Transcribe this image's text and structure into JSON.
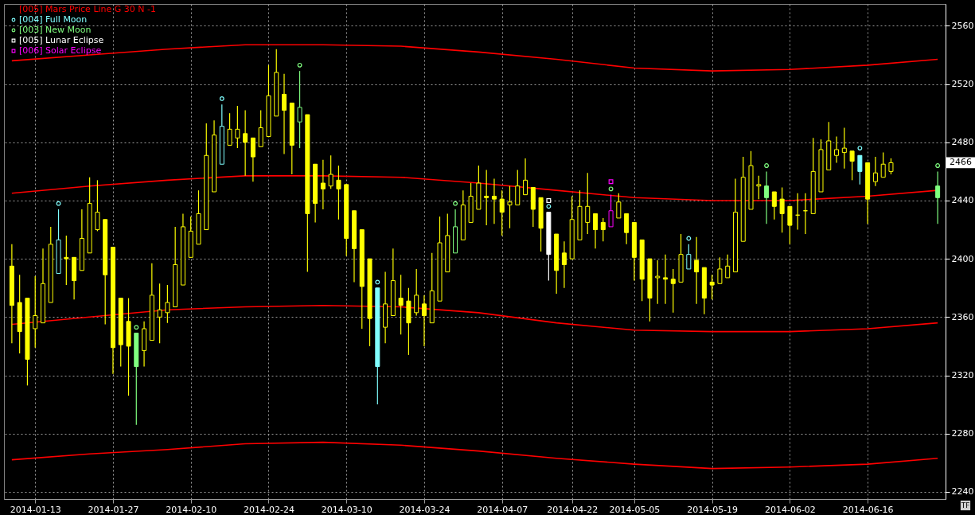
{
  "chart_data": {
    "type": "candlestick",
    "categories": [
      null,
      null,
      null,
      "2014-01-13",
      null,
      null,
      null,
      null,
      null,
      null,
      null,
      null,
      null,
      "2014-01-27",
      null,
      null,
      null,
      null,
      null,
      null,
      null,
      null,
      null,
      "2014-02-10",
      null,
      null,
      null,
      null,
      null,
      null,
      null,
      null,
      null,
      "2014-02-24",
      null,
      null,
      null,
      null,
      null,
      null,
      null,
      null,
      null,
      "2014-03-10",
      null,
      null,
      null,
      null,
      null,
      null,
      null,
      null,
      null,
      "2014-03-24",
      null,
      null,
      null,
      null,
      null,
      null,
      null,
      null,
      null,
      "2014-04-07",
      null,
      null,
      null,
      null,
      null,
      null,
      null,
      null,
      "2014-04-22",
      null,
      null,
      null,
      null,
      null,
      null,
      null,
      "2014-05-05",
      null,
      null,
      null,
      null,
      null,
      null,
      null,
      null,
      null,
      "2014-05-19",
      null,
      null,
      null,
      null,
      null,
      null,
      null,
      null,
      null,
      "2014-06-02",
      null,
      null,
      null,
      null,
      null,
      null,
      null,
      null,
      null,
      "2014-06-16",
      null,
      null,
      null,
      null,
      null,
      null,
      null,
      null,
      null
    ],
    "ylim": [
      2235,
      2575
    ],
    "yticks": [
      2240,
      2280,
      2320,
      2360,
      2400,
      2440,
      2480,
      2520,
      2560
    ],
    "grid": true,
    "legend": "top left",
    "annotations": [
      {
        "text": "2466",
        "y": 2466
      },
      "TF"
    ],
    "series": [
      {
        "ohlc": [
          [
            2395,
            2410,
            2342,
            2368
          ],
          [
            2370,
            2389,
            2335,
            2350
          ],
          [
            2373,
            2373,
            2313,
            2331
          ],
          [
            2352,
            2388,
            2339,
            2361
          ],
          [
            2356,
            2407,
            2356,
            2383
          ],
          [
            2370,
            2422,
            2370,
            2410
          ],
          [
            2390,
            2434,
            2390,
            2413
          ],
          [
            2401,
            2416,
            2382,
            2400
          ],
          [
            2401,
            2401,
            2372,
            2385
          ],
          [
            2392,
            2434,
            2392,
            2414
          ],
          [
            2404,
            2456,
            2404,
            2438
          ],
          [
            2420,
            2454,
            2419,
            2432
          ],
          [
            2427,
            2427,
            2355,
            2389
          ],
          [
            2408,
            2408,
            2321,
            2339
          ],
          [
            2373,
            2373,
            2326,
            2341
          ],
          [
            2357,
            2373,
            2306,
            2340
          ],
          [
            2349,
            2349,
            2286,
            2326
          ],
          [
            2337,
            2357,
            2326,
            2352
          ],
          [
            2344,
            2397,
            2344,
            2375
          ],
          [
            2360,
            2383,
            2342,
            2365
          ],
          [
            2363,
            2382,
            2356,
            2370
          ],
          [
            2367,
            2422,
            2367,
            2396
          ],
          [
            2382,
            2431,
            2382,
            2422
          ],
          [
            2401,
            2429,
            2401,
            2419
          ],
          [
            2410,
            2447,
            2410,
            2431
          ],
          [
            2420,
            2493,
            2420,
            2471
          ],
          [
            2446,
            2495,
            2446,
            2485
          ],
          [
            2465,
            2506,
            2465,
            2491
          ],
          [
            2478,
            2500,
            2478,
            2489
          ],
          [
            2483,
            2505,
            2476,
            2489
          ],
          [
            2486,
            2502,
            2457,
            2480
          ],
          [
            2483,
            2483,
            2453,
            2470
          ],
          [
            2477,
            2502,
            2477,
            2490
          ],
          [
            2484,
            2533,
            2484,
            2512
          ],
          [
            2498,
            2544,
            2498,
            2528
          ],
          [
            2513,
            2527,
            2472,
            2502
          ],
          [
            2507,
            2507,
            2458,
            2478
          ],
          [
            2494,
            2529,
            2476,
            2504
          ],
          [
            2499,
            2499,
            2391,
            2431
          ],
          [
            2465,
            2465,
            2425,
            2438
          ],
          [
            2452,
            2468,
            2434,
            2448
          ],
          [
            2450,
            2471,
            2448,
            2458
          ],
          [
            2454,
            2464,
            2427,
            2448
          ],
          [
            2451,
            2451,
            2402,
            2414
          ],
          [
            2433,
            2433,
            2384,
            2407
          ],
          [
            2420,
            2420,
            2352,
            2381
          ],
          [
            2400,
            2400,
            2340,
            2359
          ],
          [
            2380,
            2380,
            2300,
            2326
          ],
          [
            2353,
            2391,
            2342,
            2369
          ],
          [
            2361,
            2407,
            2361,
            2385
          ],
          [
            2373,
            2389,
            2348,
            2368
          ],
          [
            2371,
            2380,
            2334,
            2356
          ],
          [
            2363,
            2393,
            2361,
            2375
          ],
          [
            2369,
            2375,
            2340,
            2361
          ],
          [
            2356,
            2404,
            2356,
            2378
          ],
          [
            2371,
            2429,
            2371,
            2411
          ],
          [
            2391,
            2431,
            2391,
            2416
          ],
          [
            2404,
            2434,
            2404,
            2422
          ],
          [
            2413,
            2447,
            2413,
            2437
          ],
          [
            2425,
            2452,
            2425,
            2443
          ],
          [
            2434,
            2464,
            2434,
            2452
          ],
          [
            2443,
            2461,
            2423,
            2442
          ],
          [
            2443,
            2455,
            2424,
            2441
          ],
          [
            2441,
            2447,
            2416,
            2432
          ],
          [
            2437,
            2450,
            2421,
            2439
          ],
          [
            2437,
            2461,
            2437,
            2450
          ],
          [
            2444,
            2469,
            2444,
            2454
          ],
          [
            2449,
            2449,
            2422,
            2434
          ],
          [
            2442,
            2442,
            2405,
            2421
          ],
          [
            2432,
            2432,
            2385,
            2403
          ],
          [
            2417,
            2417,
            2376,
            2392
          ],
          [
            2404,
            2412,
            2380,
            2396
          ],
          [
            2400,
            2443,
            2400,
            2427
          ],
          [
            2413,
            2447,
            2413,
            2436
          ],
          [
            2425,
            2459,
            2417,
            2436
          ],
          [
            2431,
            2431,
            2407,
            2420
          ],
          [
            2425,
            2428,
            2412,
            2420
          ],
          [
            2422,
            2444,
            2422,
            2433
          ],
          [
            2428,
            2445,
            2428,
            2439
          ],
          [
            2431,
            2431,
            2410,
            2418
          ],
          [
            2425,
            2425,
            2385,
            2401
          ],
          [
            2413,
            2413,
            2371,
            2386
          ],
          [
            2400,
            2400,
            2357,
            2373
          ],
          [
            2387,
            2399,
            2369,
            2388
          ],
          [
            2387,
            2403,
            2369,
            2386
          ],
          [
            2386,
            2393,
            2363,
            2383
          ],
          [
            2384,
            2417,
            2384,
            2403
          ],
          [
            2393,
            2410,
            2393,
            2403
          ],
          [
            2399,
            2415,
            2369,
            2391
          ],
          [
            2394,
            2394,
            2362,
            2373
          ],
          [
            2384,
            2389,
            2372,
            2382
          ],
          [
            2383,
            2401,
            2383,
            2393
          ],
          [
            2387,
            2403,
            2387,
            2395
          ],
          [
            2391,
            2455,
            2391,
            2432
          ],
          [
            2412,
            2470,
            2412,
            2456
          ],
          [
            2434,
            2474,
            2434,
            2464
          ],
          [
            2450,
            2457,
            2441,
            2451
          ],
          [
            2450,
            2460,
            2424,
            2442
          ],
          [
            2446,
            2446,
            2427,
            2436
          ],
          [
            2441,
            2449,
            2418,
            2431
          ],
          [
            2436,
            2436,
            2410,
            2423
          ],
          [
            2430,
            2445,
            2420,
            2430
          ],
          [
            2433,
            2445,
            2417,
            2433
          ],
          [
            2431,
            2483,
            2431,
            2460
          ],
          [
            2446,
            2482,
            2446,
            2475
          ],
          [
            2461,
            2494,
            2461,
            2481
          ],
          [
            2471,
            2484,
            2466,
            2475
          ],
          [
            2473,
            2490,
            2462,
            2476
          ],
          [
            2474,
            2474,
            2454,
            2467
          ],
          [
            2471,
            2471,
            2451,
            2460
          ],
          [
            2466,
            2466,
            2424,
            2441
          ],
          [
            2453,
            2470,
            2450,
            2459
          ],
          [
            2456,
            2473,
            2456,
            2465
          ],
          [
            2460,
            2469,
            2458,
            2466
          ],
          null,
          null,
          null,
          null,
          null,
          [
            2450,
            2460,
            2424,
            2442
          ]
        ],
        "colors": [
          "#ffff00",
          "#ffff00",
          "#ffff00",
          "#ffff00",
          "#ffff00",
          "#ffff00",
          "#80ffff",
          "#ffff00",
          "#ffff00",
          "#ffff00",
          "#ffff00",
          "#ffff00",
          "#ffff00",
          "#ffff00",
          "#ffff00",
          "#ffff00",
          "#80ff80",
          "#ffff00",
          "#ffff00",
          "#ffff00",
          "#ffff00",
          "#ffff00",
          "#ffff00",
          "#ffff00",
          "#ffff00",
          "#ffff00",
          "#ffff00",
          "#80ffff",
          "#ffff00",
          "#ffff00",
          "#ffff00",
          "#ffff00",
          "#ffff00",
          "#ffff00",
          "#ffff00",
          "#ffff00",
          "#ffff00",
          "#80ff80",
          "#ffff00",
          "#ffff00",
          "#ffff00",
          "#ffff00",
          "#ffff00",
          "#ffff00",
          "#ffff00",
          "#ffff00",
          "#ffff00",
          "#80ffff",
          "#ffff00",
          "#ffff00",
          "#ffff00",
          "#ffff00",
          "#ffff00",
          "#ffff00",
          "#ffff00",
          "#ffff00",
          "#ffff00",
          "#80ff80",
          "#ffff00",
          "#ffff00",
          "#ffff00",
          "#ffff00",
          "#ffff00",
          "#ffff00",
          "#ffff00",
          "#ffff00",
          "#ffff00",
          "#ffff00",
          "#ffff00",
          "#ffffff",
          "#ffff00",
          "#ffff00",
          "#ffff00",
          "#ffff00",
          "#ffff00",
          "#ffff00",
          "#ffff00",
          "#ff00ff",
          "#ffff00",
          "#ffff00",
          "#ffff00",
          "#ffff00",
          "#ffff00",
          "#ffff00",
          "#ffff00",
          "#ffff00",
          "#ffff00",
          "#80ffff",
          "#ffff00",
          "#ffff00",
          "#ffff00",
          "#ffff00",
          "#ffff00",
          "#ffff00",
          "#ffff00",
          "#ffff00",
          "#ffff00",
          "#80ff80",
          "#ffff00",
          "#ffff00",
          "#ffff00",
          "#ffff00",
          "#ffff00",
          "#ffff00",
          "#ffff00",
          "#ffff00",
          "#ffff00",
          "#ffff00",
          "#ffff00",
          "#80ffff",
          "#ffff00",
          "#ffff00",
          "#ffff00",
          "#ffff00",
          null,
          null,
          null,
          null,
          null,
          "#80ff80"
        ]
      },
      {
        "type": "line",
        "name": "[005] Mars Price Line G 30 N -1",
        "color": "#ff0000",
        "values": [
          2536,
          null,
          null,
          null,
          null,
          null,
          null,
          null,
          null,
          null,
          2540,
          null,
          null,
          null,
          null,
          null,
          null,
          null,
          null,
          null,
          2544,
          null,
          null,
          null,
          null,
          null,
          null,
          null,
          null,
          null,
          2547,
          null,
          null,
          null,
          null,
          null,
          null,
          null,
          null,
          null,
          2547,
          null,
          null,
          null,
          null,
          null,
          null,
          null,
          null,
          null,
          2546,
          null,
          null,
          null,
          null,
          null,
          null,
          null,
          null,
          null,
          2542,
          null,
          null,
          null,
          null,
          null,
          null,
          null,
          null,
          null,
          2537,
          null,
          null,
          null,
          null,
          null,
          null,
          null,
          null,
          null,
          2531,
          null,
          null,
          null,
          null,
          null,
          null,
          null,
          null,
          null,
          2529,
          null,
          null,
          null,
          null,
          null,
          null,
          null,
          null,
          null,
          2530,
          null,
          null,
          null,
          null,
          null,
          null,
          null,
          null,
          null,
          2533,
          null,
          null,
          null,
          null,
          null,
          null,
          null,
          null,
          2537
        ]
      },
      {
        "type": "line",
        "color": "#ff0000",
        "values": [
          2445,
          null,
          null,
          null,
          null,
          null,
          null,
          null,
          null,
          null,
          2450,
          null,
          null,
          null,
          null,
          null,
          null,
          null,
          null,
          null,
          2454,
          null,
          null,
          null,
          null,
          null,
          null,
          null,
          null,
          null,
          2457,
          null,
          null,
          null,
          null,
          null,
          null,
          null,
          null,
          null,
          2457,
          null,
          null,
          null,
          null,
          null,
          null,
          null,
          null,
          null,
          2456,
          null,
          null,
          null,
          null,
          null,
          null,
          null,
          null,
          null,
          2452,
          null,
          null,
          null,
          null,
          null,
          null,
          null,
          null,
          null,
          2447,
          null,
          null,
          null,
          null,
          null,
          null,
          null,
          null,
          null,
          2442,
          null,
          null,
          null,
          null,
          null,
          null,
          null,
          null,
          null,
          2440,
          null,
          null,
          null,
          null,
          null,
          null,
          null,
          null,
          null,
          2440,
          null,
          null,
          null,
          null,
          null,
          null,
          null,
          null,
          null,
          2443,
          null,
          null,
          null,
          null,
          null,
          null,
          null,
          null,
          2447
        ]
      },
      {
        "type": "line",
        "color": "#ff0000",
        "values": [
          2355,
          null,
          null,
          null,
          null,
          null,
          null,
          null,
          null,
          null,
          2360,
          null,
          null,
          null,
          null,
          null,
          null,
          null,
          null,
          null,
          2365,
          null,
          null,
          null,
          null,
          null,
          null,
          null,
          null,
          null,
          2367,
          null,
          null,
          null,
          null,
          null,
          null,
          null,
          null,
          null,
          2368,
          null,
          null,
          null,
          null,
          null,
          null,
          null,
          null,
          null,
          2367,
          null,
          null,
          null,
          null,
          null,
          null,
          null,
          null,
          null,
          2363,
          null,
          null,
          null,
          null,
          null,
          null,
          null,
          null,
          null,
          2356,
          null,
          null,
          null,
          null,
          null,
          null,
          null,
          null,
          null,
          2351,
          null,
          null,
          null,
          null,
          null,
          null,
          null,
          null,
          null,
          2350,
          null,
          null,
          null,
          null,
          null,
          null,
          null,
          null,
          null,
          2350,
          null,
          null,
          null,
          null,
          null,
          null,
          null,
          null,
          null,
          2352,
          null,
          null,
          null,
          null,
          null,
          null,
          null,
          null,
          2356
        ]
      },
      {
        "type": "line",
        "color": "#ff0000",
        "values": [
          2262,
          null,
          null,
          null,
          null,
          null,
          null,
          null,
          null,
          null,
          2266,
          null,
          null,
          null,
          null,
          null,
          null,
          null,
          null,
          null,
          2269,
          null,
          null,
          null,
          null,
          null,
          null,
          null,
          null,
          null,
          2273,
          null,
          null,
          null,
          null,
          null,
          null,
          null,
          null,
          null,
          2274,
          null,
          null,
          null,
          null,
          null,
          null,
          null,
          null,
          null,
          2272,
          null,
          null,
          null,
          null,
          null,
          null,
          null,
          null,
          null,
          2268,
          null,
          null,
          null,
          null,
          null,
          null,
          null,
          null,
          null,
          2263,
          null,
          null,
          null,
          null,
          null,
          null,
          null,
          null,
          null,
          2259,
          null,
          null,
          null,
          null,
          null,
          null,
          null,
          null,
          null,
          2256,
          null,
          null,
          null,
          null,
          null,
          null,
          null,
          null,
          null,
          2257,
          null,
          null,
          null,
          null,
          null,
          null,
          null,
          null,
          null,
          2259,
          null,
          null,
          null,
          null,
          null,
          null,
          null,
          null,
          2263
        ]
      },
      {
        "type": "scatter",
        "name": "[004] Full Moon",
        "color": "#80ffff",
        "marker": "circle",
        "values": [
          null,
          null,
          null,
          null,
          null,
          null,
          2438,
          null,
          null,
          null,
          null,
          null,
          null,
          null,
          null,
          null,
          null,
          null,
          null,
          null,
          null,
          null,
          null,
          null,
          null,
          null,
          null,
          2510,
          null,
          null,
          null,
          null,
          null,
          null,
          null,
          null,
          null,
          null,
          null,
          null,
          null,
          null,
          null,
          null,
          null,
          null,
          null,
          2384,
          null,
          null,
          null,
          null,
          null,
          null,
          null,
          null,
          null,
          null,
          null,
          null,
          null,
          null,
          null,
          null,
          null,
          null,
          null,
          null,
          null,
          2436,
          null,
          null,
          null,
          null,
          null,
          null,
          null,
          null,
          null,
          null,
          null,
          null,
          null,
          null,
          null,
          null,
          null,
          2414,
          null,
          null,
          null,
          null,
          null,
          null,
          null,
          null,
          null,
          null,
          null,
          null,
          null,
          null,
          null,
          null,
          null,
          null,
          null,
          null,
          null,
          2476,
          null,
          null,
          null,
          null,
          null,
          null,
          null,
          null,
          null,
          null
        ]
      },
      {
        "type": "scatter",
        "name": "[003] New Moon",
        "color": "#80ff80",
        "marker": "circle",
        "values": [
          null,
          null,
          null,
          null,
          null,
          null,
          null,
          null,
          null,
          null,
          null,
          null,
          null,
          null,
          null,
          null,
          2353,
          null,
          null,
          null,
          null,
          null,
          null,
          null,
          null,
          null,
          null,
          null,
          null,
          null,
          null,
          null,
          null,
          null,
          null,
          null,
          null,
          2533,
          null,
          null,
          null,
          null,
          null,
          null,
          null,
          null,
          null,
          null,
          null,
          null,
          null,
          null,
          null,
          null,
          null,
          null,
          null,
          2438,
          null,
          null,
          null,
          null,
          null,
          null,
          null,
          null,
          null,
          null,
          null,
          null,
          null,
          null,
          null,
          null,
          null,
          null,
          null,
          2448,
          null,
          null,
          null,
          null,
          null,
          null,
          null,
          null,
          null,
          null,
          null,
          null,
          null,
          null,
          null,
          null,
          null,
          null,
          null,
          2464,
          null,
          null,
          null,
          null,
          null,
          null,
          null,
          null,
          null,
          null,
          null,
          null,
          null,
          null,
          null,
          null,
          null,
          null,
          null,
          null,
          null,
          2464
        ]
      },
      {
        "type": "scatter",
        "name": "[005] Lunar Eclipse",
        "color": "#ffffff",
        "marker": "square",
        "values": [
          null,
          null,
          null,
          null,
          null,
          null,
          null,
          null,
          null,
          null,
          null,
          null,
          null,
          null,
          null,
          null,
          null,
          null,
          null,
          null,
          null,
          null,
          null,
          null,
          null,
          null,
          null,
          null,
          null,
          null,
          null,
          null,
          null,
          null,
          null,
          null,
          null,
          null,
          null,
          null,
          null,
          null,
          null,
          null,
          null,
          null,
          null,
          null,
          null,
          null,
          null,
          null,
          null,
          null,
          null,
          null,
          null,
          null,
          null,
          null,
          null,
          null,
          null,
          null,
          null,
          null,
          null,
          null,
          null,
          2440,
          null,
          null,
          null,
          null,
          null,
          null,
          null,
          null,
          null,
          null,
          null,
          null,
          null,
          null,
          null,
          null,
          null,
          null,
          null,
          null,
          null,
          null,
          null,
          null,
          null,
          null,
          null,
          null,
          null,
          null,
          null,
          null,
          null,
          null,
          null,
          null,
          null,
          null,
          null,
          null,
          null,
          null,
          null,
          null,
          null,
          null,
          null,
          null,
          null,
          null
        ]
      },
      {
        "type": "scatter",
        "name": "[006] Solar Eclipse",
        "color": "#ff00ff",
        "marker": "square",
        "values": [
          null,
          null,
          null,
          null,
          null,
          null,
          null,
          null,
          null,
          null,
          null,
          null,
          null,
          null,
          null,
          null,
          null,
          null,
          null,
          null,
          null,
          null,
          null,
          null,
          null,
          null,
          null,
          null,
          null,
          null,
          null,
          null,
          null,
          null,
          null,
          null,
          null,
          null,
          null,
          null,
          null,
          null,
          null,
          null,
          null,
          null,
          null,
          null,
          null,
          null,
          null,
          null,
          null,
          null,
          null,
          null,
          null,
          null,
          null,
          null,
          null,
          null,
          null,
          null,
          null,
          null,
          null,
          null,
          null,
          null,
          null,
          null,
          null,
          null,
          null,
          null,
          null,
          2453,
          null,
          null,
          null,
          null,
          null,
          null,
          null,
          null,
          null,
          null,
          null,
          null,
          null,
          null,
          null,
          null,
          null,
          null,
          null,
          null,
          null,
          null,
          null,
          null,
          null,
          null,
          null,
          null,
          null,
          null,
          null,
          null,
          null,
          null,
          null,
          null,
          null,
          null,
          null,
          null,
          null,
          null
        ]
      }
    ]
  }
}
